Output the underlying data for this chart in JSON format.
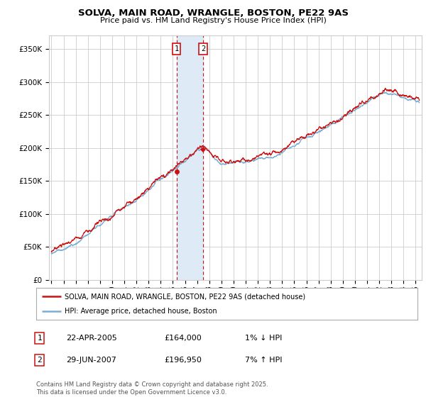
{
  "title": "SOLVA, MAIN ROAD, WRANGLE, BOSTON, PE22 9AS",
  "subtitle": "Price paid vs. HM Land Registry's House Price Index (HPI)",
  "ylabel_ticks": [
    "£0",
    "£50K",
    "£100K",
    "£150K",
    "£200K",
    "£250K",
    "£300K",
    "£350K"
  ],
  "ytick_values": [
    0,
    50000,
    100000,
    150000,
    200000,
    250000,
    300000,
    350000
  ],
  "ylim": [
    0,
    370000
  ],
  "xlim_start": 1994.8,
  "xlim_end": 2025.5,
  "sale1_x": 2005.31,
  "sale1_y": 164000,
  "sale2_x": 2007.49,
  "sale2_y": 196950,
  "legend_line1": "SOLVA, MAIN ROAD, WRANGLE, BOSTON, PE22 9AS (detached house)",
  "legend_line2": "HPI: Average price, detached house, Boston",
  "table_row1": [
    "1",
    "22-APR-2005",
    "£164,000",
    "1% ↓ HPI"
  ],
  "table_row2": [
    "2",
    "29-JUN-2007",
    "£196,950",
    "7% ↑ HPI"
  ],
  "footnote": "Contains HM Land Registry data © Crown copyright and database right 2025.\nThis data is licensed under the Open Government Licence v3.0.",
  "hpi_color": "#7aaed4",
  "price_color": "#cc1111",
  "shade_color": "#deeaf5",
  "grid_color": "#cccccc",
  "bg_color": "#ffffff"
}
